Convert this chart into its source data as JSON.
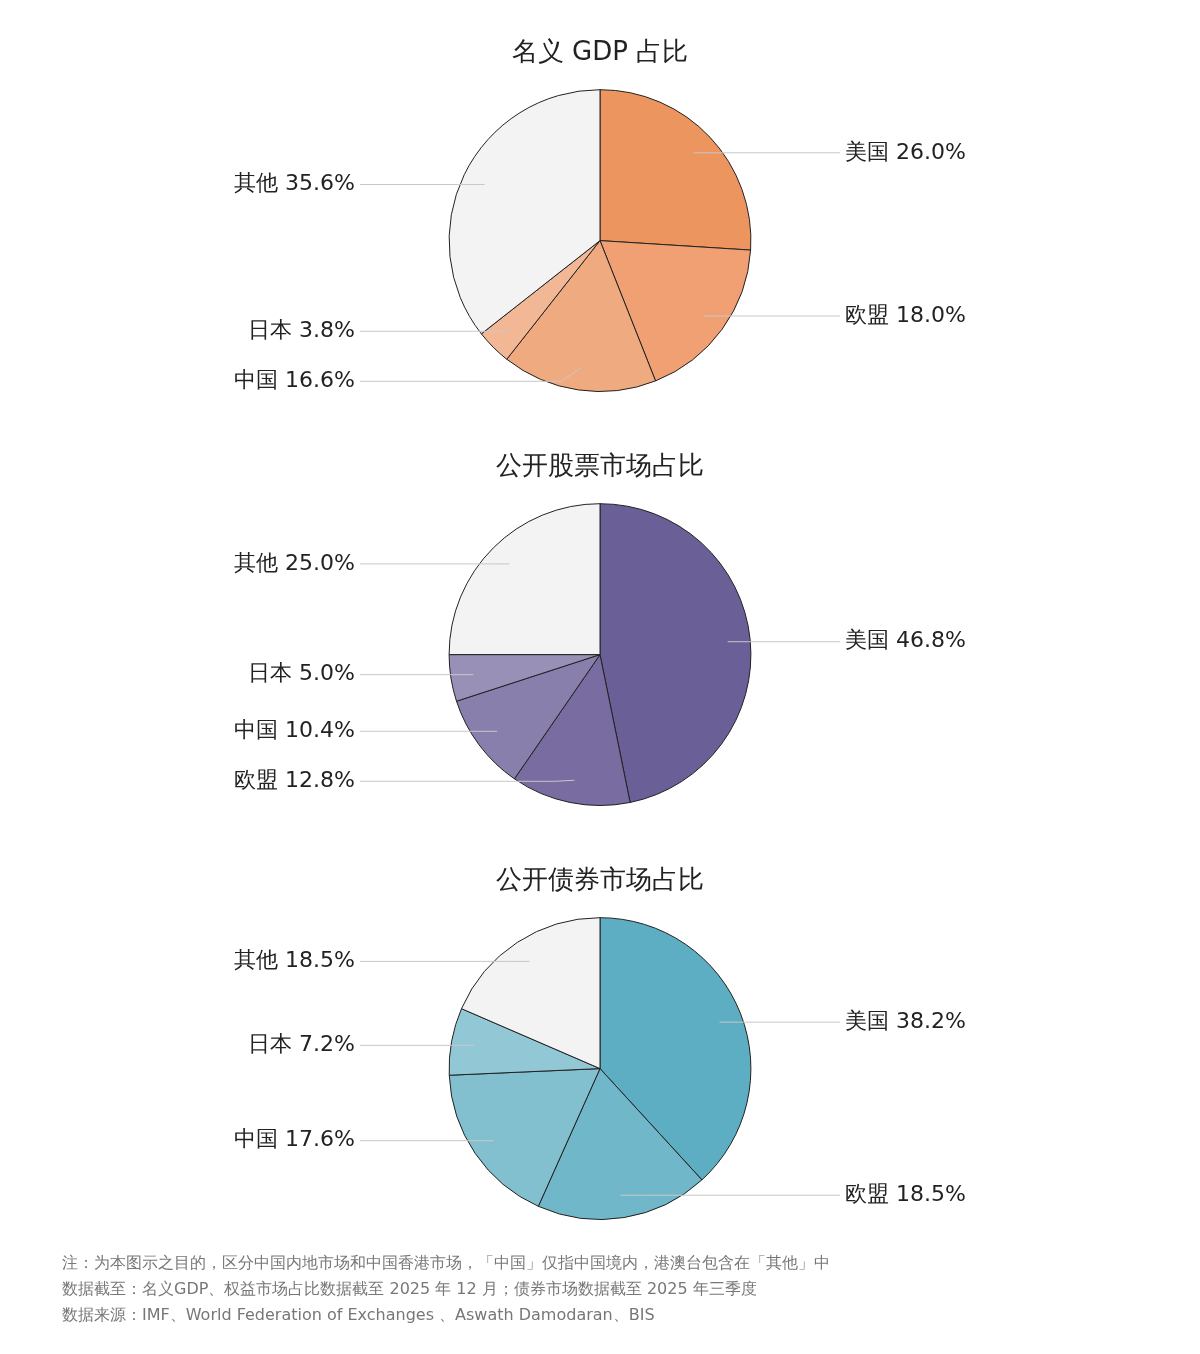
{
  "chart_data": [
    {
      "type": "pie",
      "title": "名义 GDP 占比",
      "categories": [
        "美国",
        "欧盟",
        "中国",
        "日本",
        "其他"
      ],
      "values": [
        26.0,
        18.0,
        16.6,
        3.8,
        35.6
      ],
      "value_labels": [
        "26.0%",
        "18.0%",
        "16.6%",
        "3.8%",
        "35.6%"
      ],
      "colors": [
        "#ed955e",
        "#f0a072",
        "#f0aa80",
        "#f2b896",
        "#f3f3f3"
      ],
      "legend": false
    },
    {
      "type": "pie",
      "title": "公开股票市场占比",
      "categories": [
        "美国",
        "欧盟",
        "中国",
        "日本",
        "其他"
      ],
      "values": [
        46.8,
        12.8,
        10.4,
        5.0,
        25.0
      ],
      "value_labels": [
        "46.8%",
        "12.8%",
        "10.4%",
        "5.0%",
        "25.0%"
      ],
      "colors": [
        "#6a5f96",
        "#786ca0",
        "#887fad",
        "#9990b8",
        "#f3f3f3"
      ],
      "legend": false
    },
    {
      "type": "pie",
      "title": "公开债券市场占比",
      "categories": [
        "美国",
        "欧盟",
        "中国",
        "日本",
        "其他"
      ],
      "values": [
        38.2,
        18.5,
        17.6,
        7.2,
        18.5
      ],
      "value_labels": [
        "38.2%",
        "18.5%",
        "17.6%",
        "7.2%",
        "18.5%"
      ],
      "colors": [
        "#5daec2",
        "#6fb7c9",
        "#82c0cf",
        "#92c8d6",
        "#f3f3f3"
      ],
      "legend": false,
      "annotations": [
        "注：为本图示之目的，区分中国内地市场和中国香港市场，「中国」仅指中国境内，港澳台包含在「其他」中",
        "数据截至：名义GDP、权益市场占比数据截至 2025 年 12 月；债券市场数据截至 2025 年三季度",
        "数据来源：IMF、World Federation of Exchanges 、Aswath Damodaran、BIS"
      ]
    }
  ]
}
